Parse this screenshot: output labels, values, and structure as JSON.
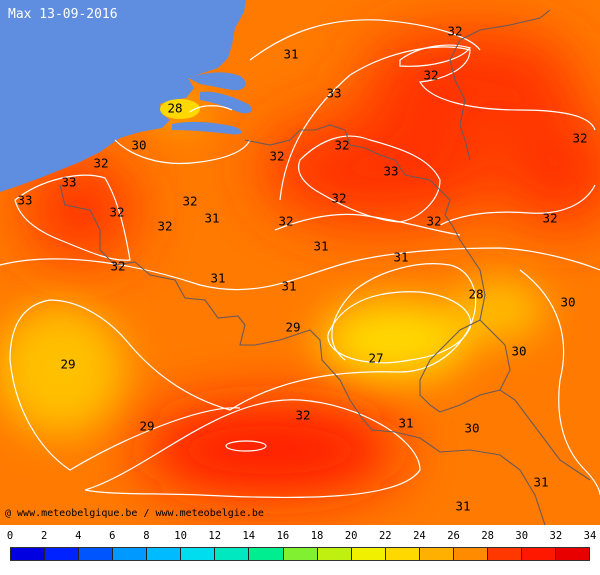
{
  "title": "Max 13-09-2016",
  "credit": "@ www.meteobelgique.be / www.meteobelgie.be",
  "colors": {
    "sea": "#5f8de0",
    "base": "#ff7a00",
    "hot": "#ff3000",
    "hotter": "#ff1500",
    "cool": "#ffc000",
    "coolest": "#ffd800",
    "isoline": "#ffffff",
    "border": "#6a5a5a"
  },
  "isotherm_labels": [
    {
      "id": "iso-32-ne",
      "text": "32"
    },
    {
      "id": "iso-31-coast",
      "text": "31"
    },
    {
      "id": "iso-32-n",
      "text": "32"
    },
    {
      "id": "iso-28-island",
      "text": "28"
    },
    {
      "id": "iso-33-n",
      "text": "33"
    },
    {
      "id": "iso-32-e",
      "text": "32"
    },
    {
      "id": "iso-30-coast",
      "text": "30"
    },
    {
      "id": "iso-32-c1",
      "text": "32"
    },
    {
      "id": "iso-32-c2",
      "text": "32"
    },
    {
      "id": "iso-32-w1",
      "text": "32"
    },
    {
      "id": "iso-33-c",
      "text": "33"
    },
    {
      "id": "iso-33-w1",
      "text": "33"
    },
    {
      "id": "iso-33-w2",
      "text": "33"
    },
    {
      "id": "iso-32-w2",
      "text": "32"
    },
    {
      "id": "iso-32-w3",
      "text": "32"
    },
    {
      "id": "iso-32-c3",
      "text": "32"
    },
    {
      "id": "iso-31-c1",
      "text": "31"
    },
    {
      "id": "iso-32-c4",
      "text": "32"
    },
    {
      "id": "iso-32-c5",
      "text": "32"
    },
    {
      "id": "iso-32-c6",
      "text": "32"
    },
    {
      "id": "iso-32-e2",
      "text": "32"
    },
    {
      "id": "iso-31-c2",
      "text": "31"
    },
    {
      "id": "iso-31-c3",
      "text": "31"
    },
    {
      "id": "iso-32-w4",
      "text": "32"
    },
    {
      "id": "iso-31-c4",
      "text": "31"
    },
    {
      "id": "iso-31-c5",
      "text": "31"
    },
    {
      "id": "iso-28-e",
      "text": "28"
    },
    {
      "id": "iso-30-e",
      "text": "30"
    },
    {
      "id": "iso-29-c",
      "text": "29"
    },
    {
      "id": "iso-29-w",
      "text": "29"
    },
    {
      "id": "iso-27-c",
      "text": "27"
    },
    {
      "id": "iso-30-se",
      "text": "30"
    },
    {
      "id": "iso-32-s",
      "text": "32"
    },
    {
      "id": "iso-31-s",
      "text": "31"
    },
    {
      "id": "iso-29-sw",
      "text": "29"
    },
    {
      "id": "iso-30-s",
      "text": "30"
    },
    {
      "id": "iso-31-se",
      "text": "31"
    },
    {
      "id": "iso-31-s2",
      "text": "31"
    }
  ],
  "scale": {
    "ticks": [
      "0",
      "2",
      "4",
      "6",
      "8",
      "10",
      "12",
      "14",
      "16",
      "18",
      "20",
      "22",
      "24",
      "26",
      "28",
      "30",
      "32",
      "34"
    ],
    "colors": [
      "#0000ff",
      "#0022ff",
      "#0044ff",
      "#0066ff",
      "#0088ff",
      "#00aaff",
      "#00ccff",
      "#00e0e0",
      "#00e8b0",
      "#20ee80",
      "#70f040",
      "#b0f020",
      "#e8f000",
      "#ffe000",
      "#ffc000",
      "#ff9800",
      "#ff6800",
      "#ff3000",
      "#ff1000",
      "#e80000",
      "#0000ff",
      "#0000ff"
    ]
  }
}
